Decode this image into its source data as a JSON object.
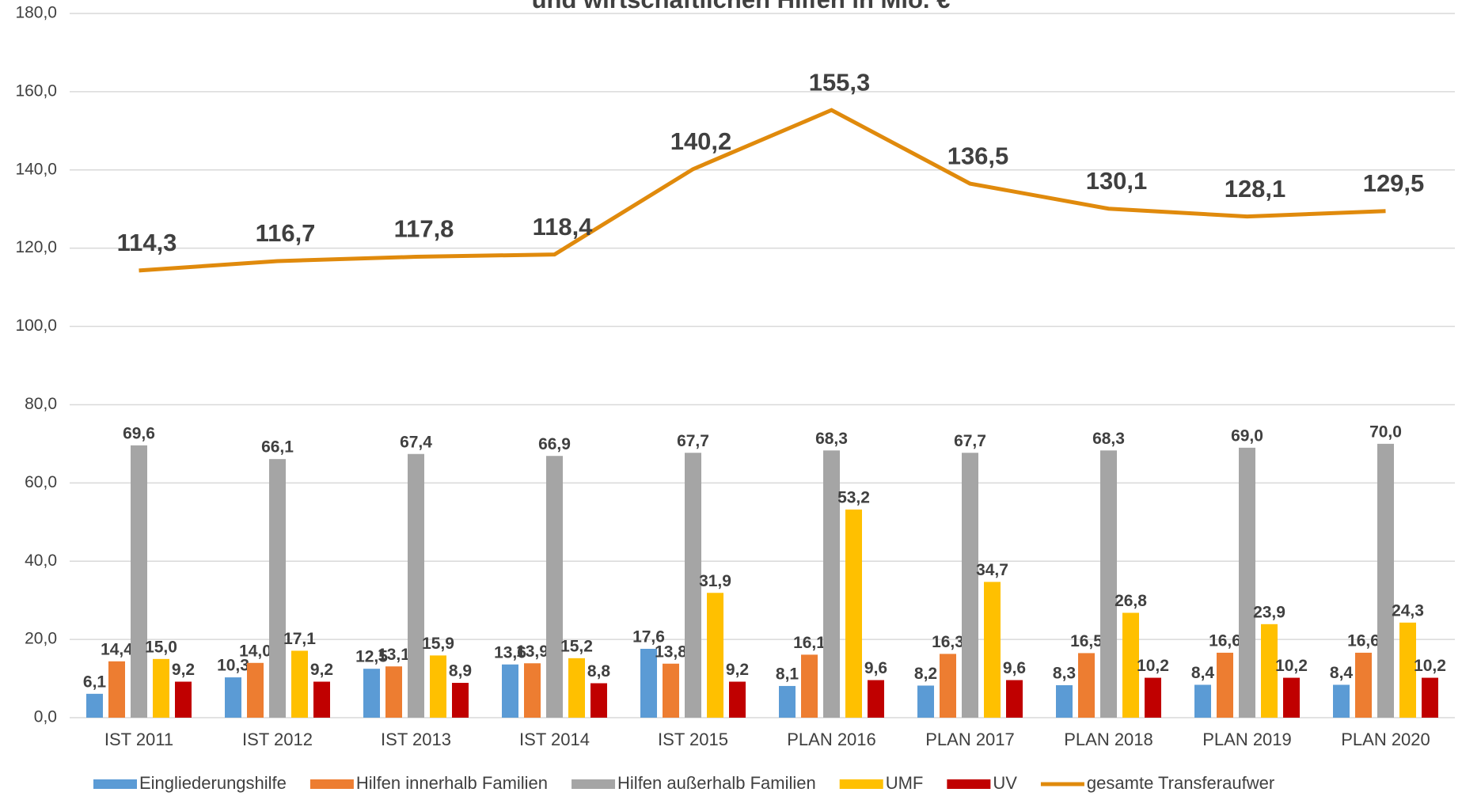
{
  "chart_data": {
    "type": "bar",
    "title": "und wirtschaftlichen Hilfen in Mio. €",
    "categories": [
      "IST 2011",
      "IST 2012",
      "IST 2013",
      "IST 2014",
      "IST 2015",
      "PLAN 2016",
      "PLAN 2017",
      "PLAN 2018",
      "PLAN 2019",
      "PLAN 2020"
    ],
    "ylim": [
      0,
      180
    ],
    "yticks": [
      {
        "value": 0,
        "label": "0,0"
      },
      {
        "value": 20,
        "label": "20,0"
      },
      {
        "value": 40,
        "label": "40,0"
      },
      {
        "value": 60,
        "label": "60,0"
      },
      {
        "value": 80,
        "label": "80,0"
      },
      {
        "value": 100,
        "label": "100,0"
      },
      {
        "value": 120,
        "label": "120,0"
      },
      {
        "value": 140,
        "label": "140,0"
      },
      {
        "value": 160,
        "label": "160,0"
      },
      {
        "value": 180,
        "label": "180,0"
      }
    ],
    "grid": true,
    "legend": "bottom",
    "series": [
      {
        "name": "Eingliederungshilfe",
        "color": "#5b9bd5",
        "type": "bar",
        "values": [
          6.1,
          10.3,
          12.5,
          13.6,
          17.6,
          8.1,
          8.2,
          8.3,
          8.4,
          8.4
        ],
        "value_labels": [
          "6,1",
          "10,3",
          "12,5",
          "13,6",
          "17,6",
          "8,1",
          "8,2",
          "8,3",
          "8,4",
          "8,4"
        ]
      },
      {
        "name": "Hilfen innerhalb Familien",
        "color": "#ed7d31",
        "type": "bar",
        "values": [
          14.4,
          14.0,
          13.1,
          13.9,
          13.8,
          16.1,
          16.3,
          16.5,
          16.6,
          16.6
        ],
        "value_labels": [
          "14,4",
          "14,0",
          "13,1",
          "13,9",
          "13,8",
          "16,1",
          "16,3",
          "16,5",
          "16,6",
          "16,6"
        ]
      },
      {
        "name": "Hilfen außerhalb Familien",
        "color": "#a5a5a5",
        "type": "bar",
        "values": [
          69.6,
          66.1,
          67.4,
          66.9,
          67.7,
          68.3,
          67.7,
          68.3,
          69.0,
          70.0
        ],
        "value_labels": [
          "69,6",
          "66,1",
          "67,4",
          "66,9",
          "67,7",
          "68,3",
          "67,7",
          "68,3",
          "69,0",
          "70,0"
        ]
      },
      {
        "name": "UMF",
        "color": "#ffc000",
        "type": "bar",
        "values": [
          15.0,
          17.1,
          15.9,
          15.2,
          31.9,
          53.2,
          34.7,
          26.8,
          23.9,
          24.3
        ],
        "value_labels": [
          "15,0",
          "17,1",
          "15,9",
          "15,2",
          "31,9",
          "53,2",
          "34,7",
          "26,8",
          "23,9",
          "24,3"
        ]
      },
      {
        "name": "UV",
        "color": "#c00000",
        "type": "bar",
        "values": [
          9.2,
          9.2,
          8.9,
          8.8,
          9.2,
          9.6,
          9.6,
          10.2,
          10.2,
          10.2
        ],
        "value_labels": [
          "9,2",
          "9,2",
          "8,9",
          "8,8",
          "9,2",
          "9,6",
          "9,6",
          "10,2",
          "10,2",
          "10,2"
        ]
      },
      {
        "name": "gesamte Transferaufwer",
        "color": "#e08a0c",
        "type": "line",
        "values": [
          114.3,
          116.7,
          117.8,
          118.4,
          140.2,
          155.3,
          136.5,
          130.1,
          128.1,
          129.5
        ],
        "value_labels": [
          "114,3",
          "116,7",
          "117,8",
          "118,4",
          "140,2",
          "155,3",
          "136,5",
          "130,1",
          "128,1",
          "129,5"
        ]
      }
    ]
  }
}
